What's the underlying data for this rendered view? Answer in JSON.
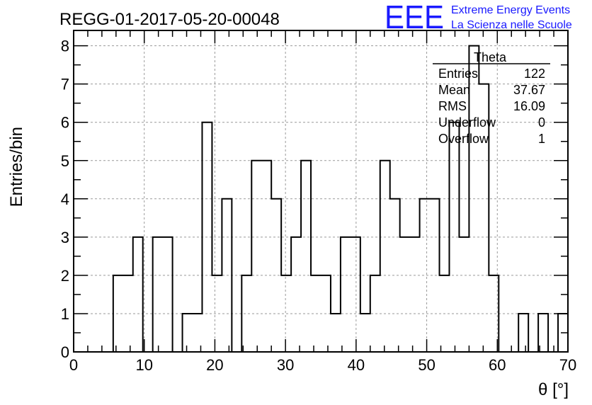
{
  "chart_data": {
    "type": "bar",
    "title": "REGG-01-2017-05-20-00048",
    "xlabel": "θ [°]",
    "ylabel": "Entries/bin",
    "xlim": [
      0,
      70
    ],
    "ylim": [
      0,
      8.4
    ],
    "xticks": [
      0,
      10,
      20,
      30,
      40,
      50,
      60,
      70
    ],
    "yticks": [
      0,
      1,
      2,
      3,
      4,
      5,
      6,
      7,
      8
    ],
    "grid": true,
    "bin_width": 1.4,
    "bin_edges_start": 0,
    "values": [
      0,
      0,
      0,
      0,
      2,
      2,
      3,
      0,
      3,
      3,
      0,
      1,
      1,
      6,
      2,
      4,
      0,
      2,
      5,
      5,
      4,
      2,
      3,
      5,
      2,
      2,
      1,
      3,
      3,
      1,
      2,
      5,
      4,
      3,
      3,
      4,
      4,
      2,
      6,
      3,
      8,
      7,
      2,
      0,
      0,
      1,
      0,
      1,
      0,
      1
    ]
  },
  "stats_box": {
    "title": "Theta",
    "rows": [
      {
        "label": "Entries",
        "value": "122"
      },
      {
        "label": "Mean",
        "value": "37.67"
      },
      {
        "label": "RMS",
        "value": "16.09"
      },
      {
        "label": "Underflow",
        "value": "0"
      },
      {
        "label": "Overflow",
        "value": "1"
      }
    ]
  },
  "logo": {
    "mark": "EEE",
    "line1": "Extreme Energy Events",
    "line2": "La Scienza nelle Scuole",
    "color": "#1a1aff"
  }
}
